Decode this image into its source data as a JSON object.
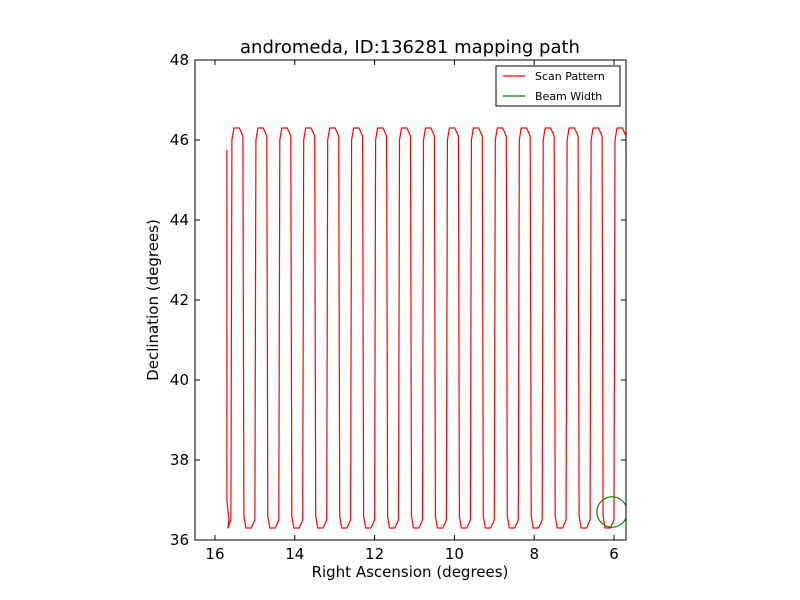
{
  "chart_data": {
    "type": "line",
    "title": "andromeda, ID:136281 mapping path",
    "xlabel": "Right Ascension (degrees)",
    "ylabel": "Declination (degrees)",
    "xlim": [
      16.5,
      5.7
    ],
    "ylim": [
      36,
      48
    ],
    "x_ticks": [
      16,
      14,
      12,
      10,
      8,
      6
    ],
    "y_ticks": [
      36,
      38,
      40,
      42,
      44,
      46,
      48
    ],
    "grid": false,
    "legend_position": "top-right",
    "scan": {
      "start_x": 15.7,
      "start_y": 45.75,
      "first_column_x": 15.6,
      "column_step": 0.3,
      "column_count": 34,
      "last_column_x": 5.7,
      "y_low": 36.3,
      "y_high": 46.3,
      "end_y": 37.8
    },
    "series": [
      {
        "name": "Scan Pattern",
        "color": "#ff0000"
      },
      {
        "name": "Beam Width",
        "color": "#008000",
        "center": [
          6.05,
          36.7
        ],
        "radius_deg": 0.38
      }
    ]
  }
}
